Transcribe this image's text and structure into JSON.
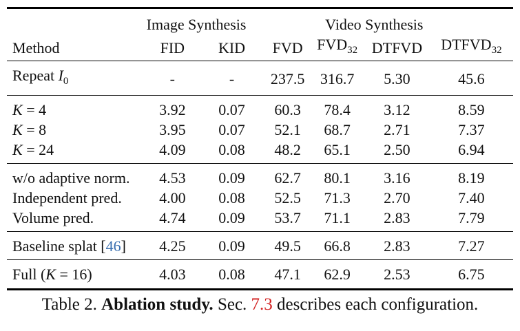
{
  "header": {
    "group_image": "Image Synthesis",
    "group_video": "Video Synthesis",
    "col_method": "Method",
    "col_fid": "FID",
    "col_kid": "KID",
    "col_fvd": "FVD",
    "col_fvd32_base": "FVD",
    "col_fvd32_sub": "32",
    "col_dtfvd": "DTFVD",
    "col_dtfvd32_base": "DTFVD",
    "col_dtfvd32_sub": "32"
  },
  "rows": {
    "repeat": {
      "method_prefix": "Repeat ",
      "method_var": "I",
      "method_sub": "0",
      "fid": "-",
      "kid": "-",
      "fvd": "237.5",
      "fvd32": "316.7",
      "dtfvd": "5.30",
      "dtfvd32": "45.6"
    },
    "k4": {
      "method_var": "K",
      "method_rest": " = 4",
      "fid": "3.92",
      "kid": "0.07",
      "fvd": "60.3",
      "fvd32": "78.4",
      "dtfvd": "3.12",
      "dtfvd32": "8.59"
    },
    "k8": {
      "method_var": "K",
      "method_rest": " = 8",
      "fid": "3.95",
      "kid": "0.07",
      "fvd": "52.1",
      "fvd32": "68.7",
      "dtfvd": "2.71",
      "dtfvd32": "7.37"
    },
    "k24": {
      "method_var": "K",
      "method_rest": " = 24",
      "fid": "4.09",
      "kid": "0.08",
      "fvd": "48.2",
      "fvd32": "65.1",
      "dtfvd": "2.50",
      "dtfvd32": "6.94"
    },
    "wo_adaptive": {
      "method": "w/o adaptive norm.",
      "fid": "4.53",
      "kid": "0.09",
      "fvd": "62.7",
      "fvd32": "80.1",
      "dtfvd": "3.16",
      "dtfvd32": "8.19"
    },
    "independent": {
      "method": "Independent pred.",
      "fid": "4.00",
      "kid": "0.08",
      "fvd": "52.5",
      "fvd32": "71.3",
      "dtfvd": "2.70",
      "dtfvd32": "7.40"
    },
    "volume": {
      "method": "Volume pred.",
      "fid": "4.74",
      "kid": "0.09",
      "fvd": "53.7",
      "fvd32": "71.1",
      "dtfvd": "2.83",
      "dtfvd32": "7.79"
    },
    "baseline": {
      "method": "Baseline splat [",
      "ref": "46",
      "method_close": "]",
      "fid": "4.25",
      "kid": "0.09",
      "fvd": "49.5",
      "fvd32": "66.8",
      "dtfvd": "2.83",
      "dtfvd32": "7.27"
    },
    "full": {
      "method_prefix": "Full (",
      "method_var": "K",
      "method_rest": " = 16)",
      "fid": "4.03",
      "kid": "0.08",
      "fvd": "47.1",
      "fvd32": "62.9",
      "dtfvd": "2.53",
      "dtfvd32": "6.75"
    }
  },
  "caption": {
    "label": "Table 2. ",
    "bold": "Ablation study.",
    "text_before_ref": " Sec. ",
    "sec_ref": "7.3",
    "text_after_ref": " describes each configuration."
  },
  "colors": {
    "citation": "#3a6fb0",
    "section_ref": "#d21f1f"
  }
}
